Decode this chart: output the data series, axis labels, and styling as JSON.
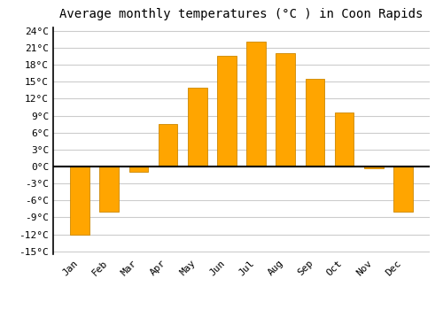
{
  "title": "Average monthly temperatures (°C ) in Coon Rapids",
  "months": [
    "Jan",
    "Feb",
    "Mar",
    "Apr",
    "May",
    "Jun",
    "Jul",
    "Aug",
    "Sep",
    "Oct",
    "Nov",
    "Dec"
  ],
  "values": [
    -12,
    -8,
    -1,
    7.5,
    14,
    19.5,
    22,
    20,
    15.5,
    9.5,
    -0.3,
    -8
  ],
  "ylim": [
    -15,
    24
  ],
  "yticks": [
    -15,
    -12,
    -9,
    -6,
    -3,
    0,
    3,
    6,
    9,
    12,
    15,
    18,
    21,
    24
  ],
  "bar_color": "#FFA500",
  "bar_edge_color": "#cc8800",
  "background_color": "#ffffff",
  "grid_color": "#cccccc",
  "title_fontsize": 10,
  "tick_fontsize": 8,
  "figsize": [
    5.0,
    3.5
  ],
  "dpi": 100
}
